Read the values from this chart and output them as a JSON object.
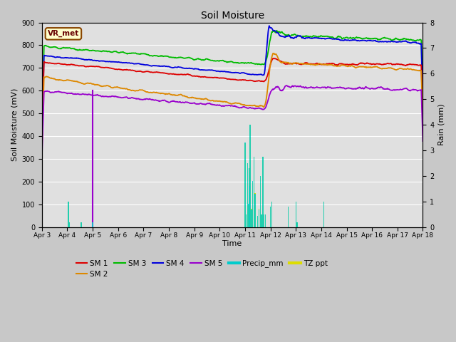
{
  "title": "Soil Moisture",
  "xlabel": "Time",
  "ylabel_left": "Soil Moisture (mV)",
  "ylabel_right": "Rain (mm)",
  "ylim_left": [
    0,
    900
  ],
  "ylim_right": [
    0,
    8.0
  ],
  "background_color": "#c8c8c8",
  "plot_bg_color": "#e0e0e0",
  "date_labels": [
    "Apr 3",
    "Apr 4",
    "Apr 5",
    "Apr 6",
    "Apr 7",
    "Apr 8",
    "Apr 9",
    "Apr 10",
    "Apr 11",
    "Apr 12",
    "Apr 13",
    "Apr 14",
    "Apr 15",
    "Apr 16",
    "Apr 17",
    "Apr 18"
  ],
  "vr_met_label": "VR_met",
  "legend_entries": [
    "SM 1",
    "SM 2",
    "SM 3",
    "SM 4",
    "SM 5",
    "Precip_mm",
    "TZ ppt"
  ],
  "sm1_color": "#dd0000",
  "sm2_color": "#dd8800",
  "sm3_color": "#00bb00",
  "sm4_color": "#0000dd",
  "sm5_color": "#9900cc",
  "precip_color": "#00cccc",
  "tzppt_color": "#dddd00",
  "vr_line_color": "#9900cc",
  "vr_box_facecolor": "#ffffcc",
  "vr_box_edgecolor": "#884400",
  "num_points": 720
}
